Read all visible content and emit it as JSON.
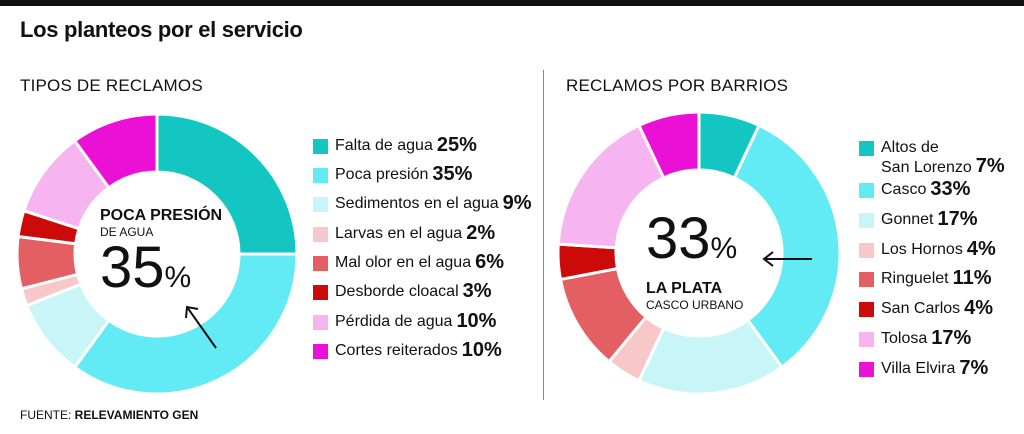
{
  "title": "Los planteos por el servicio",
  "source": {
    "prefix": "FUENTE: ",
    "name": "RELEVAMIENTO GEN"
  },
  "chart_data": [
    {
      "type": "pie",
      "title": "TIPOS DE RECLAMOS",
      "center": {
        "label_bold": "POCA PRESIÓN",
        "label_sub": "DE AGUA",
        "value": "35",
        "unit": "%"
      },
      "slices": [
        {
          "label": "Falta de agua",
          "value": 25,
          "display": "25%",
          "color": "#14C6C1"
        },
        {
          "label": "Poca presión",
          "value": 35,
          "display": "35%",
          "color": "#62EAF5"
        },
        {
          "label": "Sedimentos en el agua",
          "value": 9,
          "display": "9%",
          "color": "#C8F6F8"
        },
        {
          "label": "Larvas en el agua",
          "value": 2,
          "display": "2%",
          "color": "#F8C8C8"
        },
        {
          "label": "Mal olor en el agua",
          "value": 6,
          "display": "6%",
          "color": "#E35F63"
        },
        {
          "label": "Desborde cloacal",
          "value": 3,
          "display": "3%",
          "color": "#CC0A0A"
        },
        {
          "label": "Pérdida de agua",
          "value": 10,
          "display": "10%",
          "color": "#F6B4F1"
        },
        {
          "label": "Cortes reiterados",
          "value": 10,
          "display": "10%",
          "color": "#EA10D6"
        }
      ]
    },
    {
      "type": "pie",
      "title": "RECLAMOS POR BARRIOS",
      "center": {
        "label_bold": "LA PLATA",
        "label_sub": "CASCO URBANO",
        "value": "33",
        "unit": "%"
      },
      "slices": [
        {
          "label": "Altos de San Lorenzo",
          "label_lines": [
            "Altos de",
            "San Lorenzo"
          ],
          "value": 7,
          "display": "7%",
          "color": "#14C6C1"
        },
        {
          "label": "Casco",
          "value": 33,
          "display": "33%",
          "color": "#62EAF5"
        },
        {
          "label": "Gonnet",
          "value": 17,
          "display": "17%",
          "color": "#C8F6F8"
        },
        {
          "label": "Los Hornos",
          "value": 4,
          "display": "4%",
          "color": "#F8C8C8"
        },
        {
          "label": "Ringuelet",
          "value": 11,
          "display": "11%",
          "color": "#E35F63"
        },
        {
          "label": "San Carlos",
          "value": 4,
          "display": "4%",
          "color": "#CC0A0A"
        },
        {
          "label": "Tolosa",
          "value": 17,
          "display": "17%",
          "color": "#F6B4F1"
        },
        {
          "label": "Villa Elvira",
          "value": 7,
          "display": "7%",
          "color": "#EA10D6"
        }
      ]
    }
  ]
}
